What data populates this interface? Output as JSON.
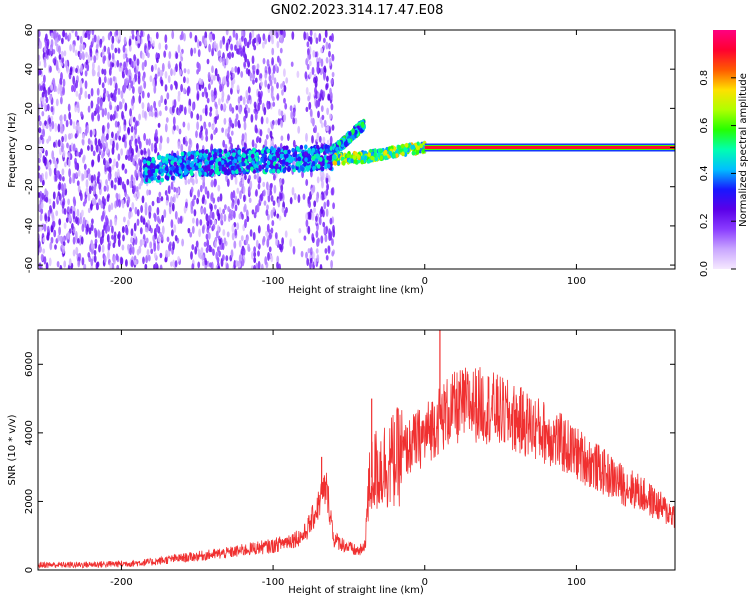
{
  "figure_title": "GN02.2023.314.17.47.E08",
  "chart_data": [
    {
      "type": "heatmap",
      "xlabel": "Height of straight line (km)",
      "ylabel": "Frequency (Hz)",
      "xlim": [
        -255,
        165
      ],
      "ylim": [
        -62,
        60
      ],
      "x_ticks": [
        -200,
        -100,
        0,
        100
      ],
      "y_ticks": [
        -60,
        -40,
        -20,
        0,
        20,
        40,
        60
      ],
      "colorbar": {
        "label": "Normalized spectral amplitude",
        "range": [
          0.0,
          1.0
        ],
        "ticks": [
          0.0,
          0.2,
          0.4,
          0.6,
          0.8
        ],
        "colormap": [
          "#f6e9ff",
          "#c9a6ff",
          "#8a3cff",
          "#5a00e8",
          "#1818ff",
          "#00bfff",
          "#00ffb0",
          "#26ff00",
          "#b0ff00",
          "#ffe000",
          "#ff5a00",
          "#ff0030",
          "#ff0080"
        ]
      },
      "features": [
        {
          "desc": "scattered noise speckle",
          "x_range": [
            -255,
            -60
          ],
          "y_range": [
            -62,
            60
          ],
          "amplitude": 0.25
        },
        {
          "desc": "signal band",
          "x": [
            -185,
            -150,
            -120,
            -90,
            -60
          ],
          "y": [
            -12,
            -8,
            -7,
            -6,
            -5
          ],
          "amplitude": 0.4
        },
        {
          "desc": "rising branch",
          "x": [
            -60,
            -50,
            -40
          ],
          "y": [
            -2,
            5,
            12
          ],
          "amplitude": 0.45
        },
        {
          "desc": "low branch",
          "x": [
            -60,
            -40,
            -20,
            0
          ],
          "y": [
            -6,
            -5,
            -2,
            0
          ],
          "amplitude": 0.6
        },
        {
          "desc": "steady carrier",
          "x": [
            0,
            165
          ],
          "y": [
            0,
            0
          ],
          "amplitude": 0.9
        }
      ]
    },
    {
      "type": "line",
      "xlabel": "Height of straight line (km)",
      "ylabel": "SNR (10 * v/v)",
      "xlim": [
        -255,
        165
      ],
      "ylim": [
        0,
        7000
      ],
      "x_ticks": [
        -200,
        -100,
        0,
        100
      ],
      "y_ticks": [
        0,
        2000,
        4000,
        6000
      ],
      "series": [
        {
          "color": "#f03030",
          "x": [
            -255,
            -230,
            -200,
            -180,
            -170,
            -150,
            -130,
            -110,
            -100,
            -90,
            -80,
            -75,
            -70,
            -68,
            -65,
            -62,
            -60,
            -50,
            -45,
            -40,
            -38,
            -36,
            -34,
            -30,
            -25,
            -20,
            -15,
            -10,
            -5,
            0,
            5,
            10,
            15,
            20,
            25,
            30,
            40,
            50,
            60,
            70,
            80,
            90,
            100,
            110,
            120,
            130,
            140,
            150,
            160,
            165
          ],
          "y": [
            150,
            150,
            180,
            230,
            300,
            400,
            500,
            650,
            700,
            850,
            1000,
            1400,
            1900,
            2200,
            2400,
            1600,
            900,
            650,
            550,
            600,
            1700,
            2600,
            2800,
            3000,
            3100,
            3200,
            3400,
            3600,
            3800,
            3900,
            4200,
            4400,
            4600,
            4700,
            4800,
            4850,
            4800,
            4600,
            4400,
            4200,
            4000,
            3700,
            3400,
            3100,
            2800,
            2500,
            2300,
            2000,
            1700,
            1600
          ],
          "peaks": [
            {
              "x": 10,
              "y": 7000
            },
            {
              "x": -35,
              "y": 5000
            },
            {
              "x": -68,
              "y": 3300
            }
          ]
        }
      ]
    }
  ]
}
